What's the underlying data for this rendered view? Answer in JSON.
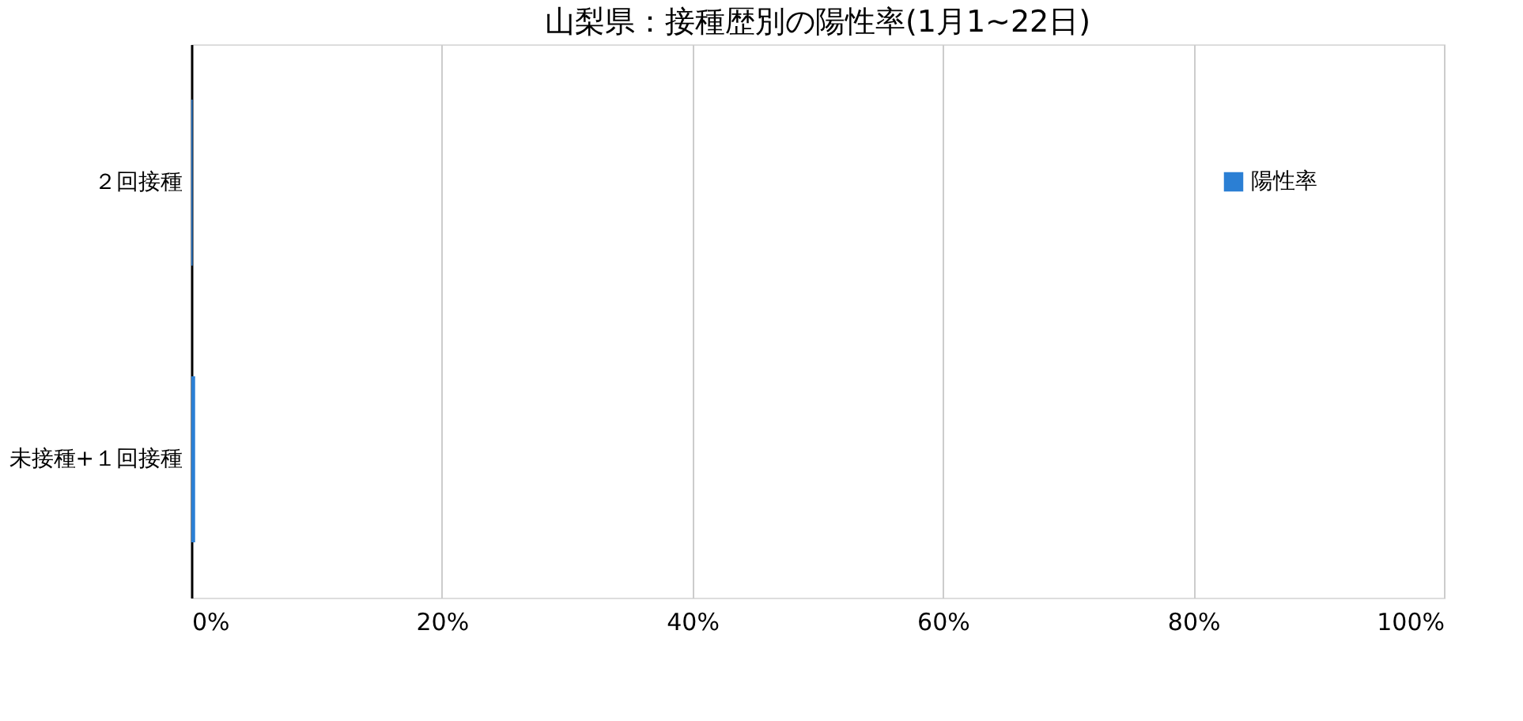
{
  "chart_data": {
    "type": "bar",
    "orientation": "horizontal",
    "title": "山梨県：接種歴別の陽性率(1月1~22日)",
    "categories": [
      "２回接種",
      "未接種+１回接種"
    ],
    "series": [
      {
        "name": "陽性率",
        "color": "#2b7fd4",
        "values": [
          0.1,
          0.3
        ]
      }
    ],
    "xlim": [
      0,
      100
    ],
    "xticks": [
      {
        "value": 0,
        "label": "0%"
      },
      {
        "value": 20,
        "label": "20%"
      },
      {
        "value": 40,
        "label": "40%"
      },
      {
        "value": 60,
        "label": "60%"
      },
      {
        "value": 80,
        "label": "80%"
      },
      {
        "value": 100,
        "label": "100%"
      }
    ],
    "grid": "x",
    "legend": "top right"
  }
}
